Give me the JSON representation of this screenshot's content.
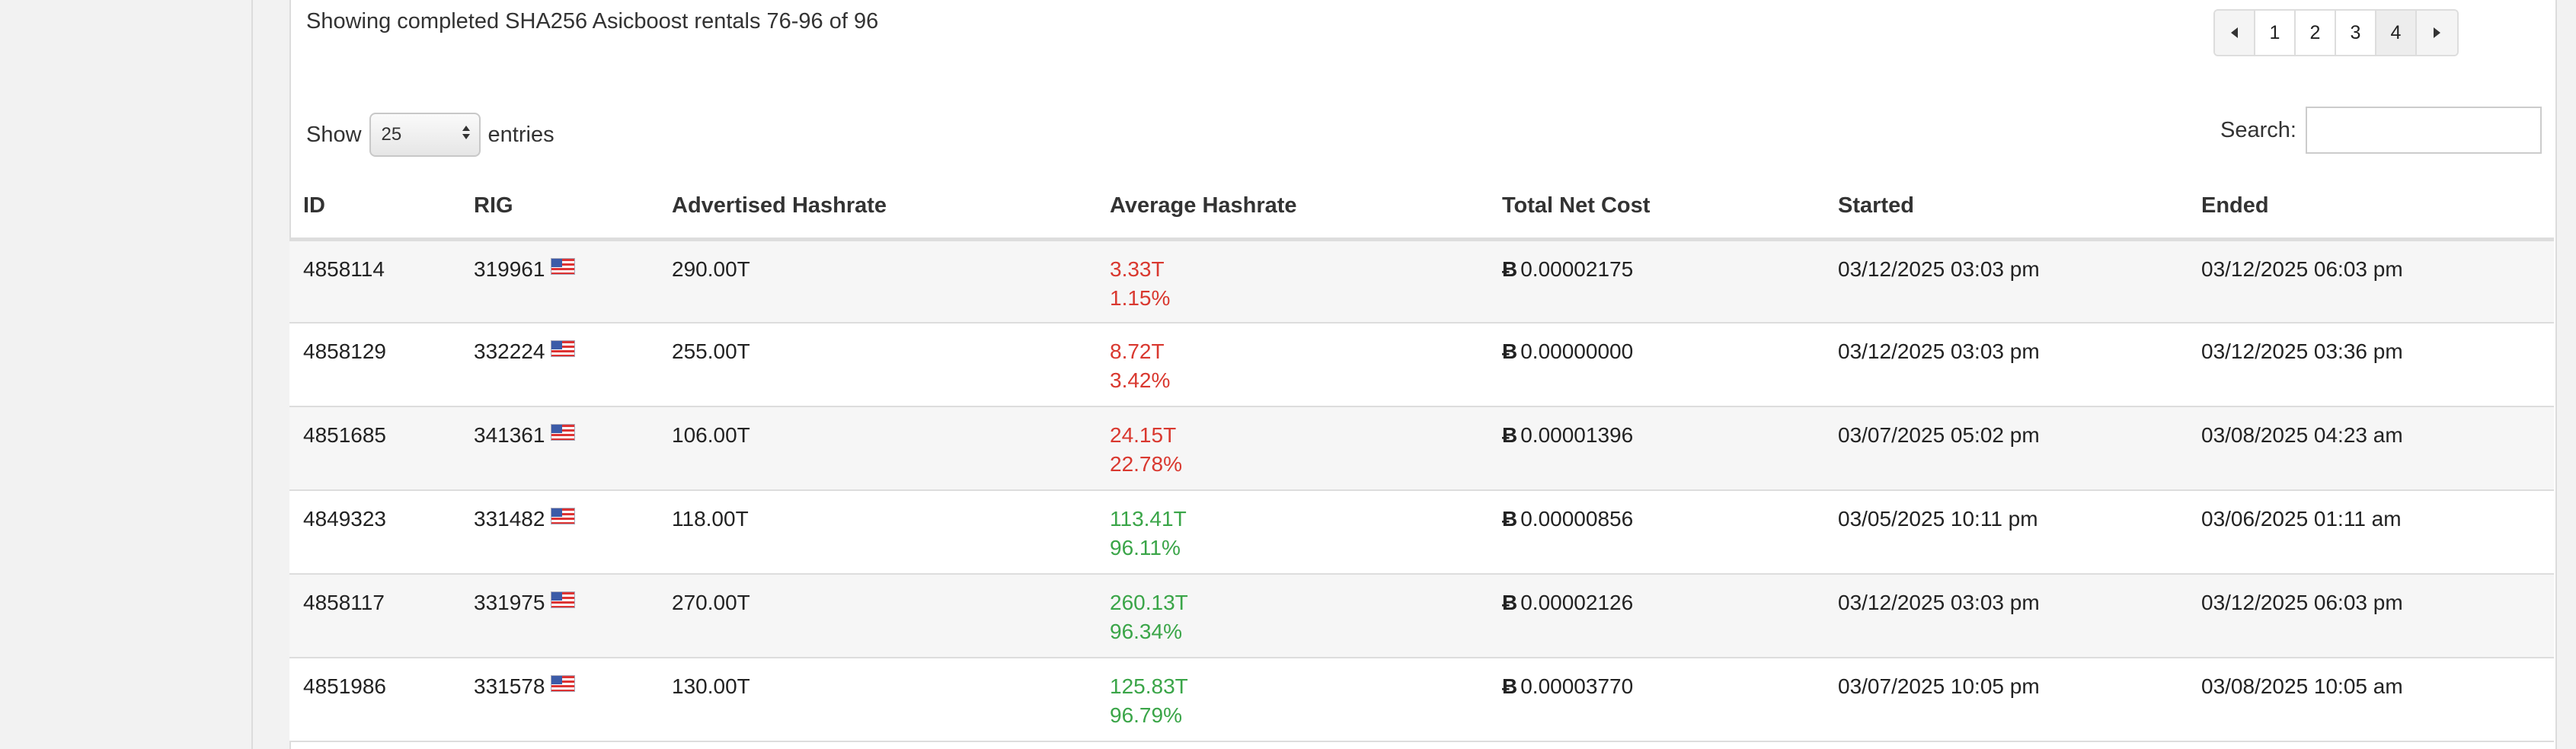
{
  "summary": "Showing completed SHA256 Asicboost rentals 76-96 of 96",
  "pagination": {
    "pages": [
      "1",
      "2",
      "3",
      "4"
    ],
    "active": "4"
  },
  "length_control": {
    "show_label": "Show",
    "selected": "25",
    "entries_label": "entries"
  },
  "search": {
    "label": "Search:",
    "value": "",
    "placeholder": ""
  },
  "colors": {
    "low_hashrate": "#d9382f",
    "high_hashrate": "#3aa548"
  },
  "table": {
    "headers": [
      "ID",
      "RIG",
      "Advertised Hashrate",
      "Average Hashrate",
      "Total Net Cost",
      "Started",
      "Ended"
    ],
    "currency_symbol": "Ƀ",
    "flag_icon": "us-flag-icon",
    "rows": [
      {
        "id": "4858114",
        "rig": "319961",
        "advertised": "290.00T",
        "avg": "3.33T",
        "avg_pct": "1.15%",
        "status": "low",
        "cost": "0.00002175",
        "started": "03/12/2025 03:03 pm",
        "ended": "03/12/2025 06:03 pm"
      },
      {
        "id": "4858129",
        "rig": "332224",
        "advertised": "255.00T",
        "avg": "8.72T",
        "avg_pct": "3.42%",
        "status": "low",
        "cost": "0.00000000",
        "started": "03/12/2025 03:03 pm",
        "ended": "03/12/2025 03:36 pm"
      },
      {
        "id": "4851685",
        "rig": "341361",
        "advertised": "106.00T",
        "avg": "24.15T",
        "avg_pct": "22.78%",
        "status": "low",
        "cost": "0.00001396",
        "started": "03/07/2025 05:02 pm",
        "ended": "03/08/2025 04:23 am"
      },
      {
        "id": "4849323",
        "rig": "331482",
        "advertised": "118.00T",
        "avg": "113.41T",
        "avg_pct": "96.11%",
        "status": "high",
        "cost": "0.00000856",
        "started": "03/05/2025 10:11 pm",
        "ended": "03/06/2025 01:11 am"
      },
      {
        "id": "4858117",
        "rig": "331975",
        "advertised": "270.00T",
        "avg": "260.13T",
        "avg_pct": "96.34%",
        "status": "high",
        "cost": "0.00002126",
        "started": "03/12/2025 03:03 pm",
        "ended": "03/12/2025 06:03 pm"
      },
      {
        "id": "4851986",
        "rig": "331578",
        "advertised": "130.00T",
        "avg": "125.83T",
        "avg_pct": "96.79%",
        "status": "high",
        "cost": "0.00003770",
        "started": "03/07/2025 10:05 pm",
        "ended": "03/08/2025 10:05 am"
      }
    ]
  }
}
